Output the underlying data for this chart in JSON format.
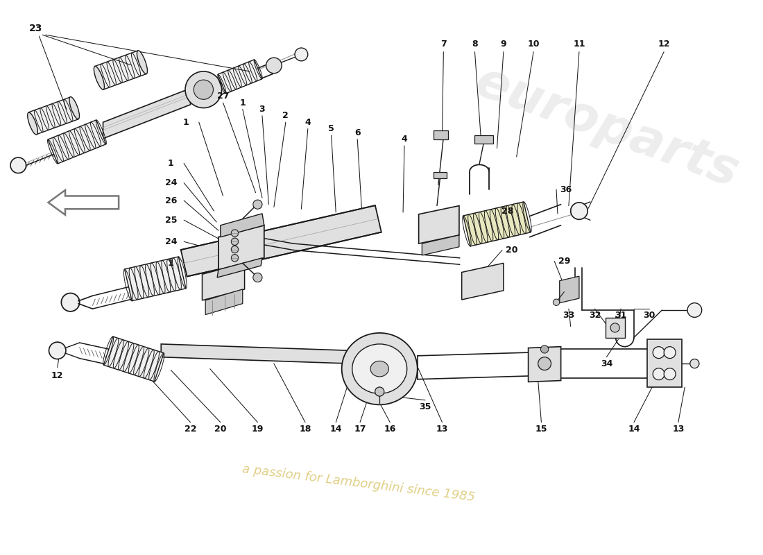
{
  "background": "#ffffff",
  "line_color": "#1a1a1a",
  "gray1": "#f0f0f0",
  "gray2": "#e0e0e0",
  "gray3": "#c8c8c8",
  "gray4": "#b0b0b0",
  "yellow_green": "#e8e8c0",
  "wm1_color": "#d0d0d0",
  "wm2_color": "#c8a820",
  "fig_width": 11.0,
  "fig_height": 8.0,
  "dpi": 100,
  "xlim": [
    0,
    11
  ],
  "ylim": [
    0,
    8
  ]
}
